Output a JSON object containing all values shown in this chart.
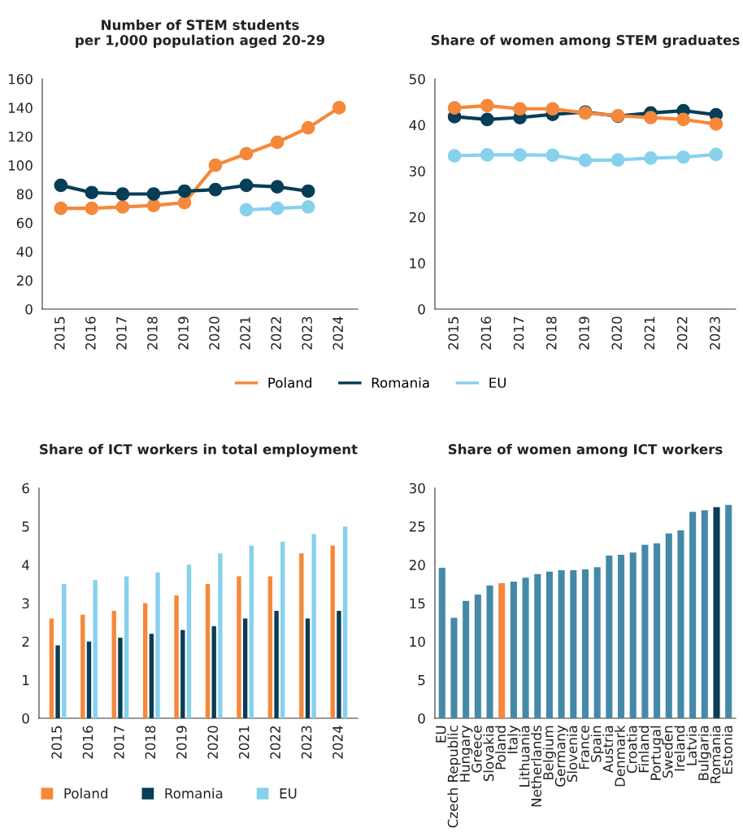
{
  "chart_data": [
    {
      "type": "line",
      "title": "Number of STEM students\nper 1,000 population aged 20-29",
      "categories": [
        "2015",
        "2016",
        "2017",
        "2018",
        "2019",
        "2020",
        "2021",
        "2022",
        "2023",
        "2024"
      ],
      "ylim": [
        0,
        160
      ],
      "yticks": [
        0,
        20,
        40,
        60,
        80,
        100,
        120,
        140,
        160
      ],
      "marker": "circle",
      "legend": "bottom",
      "grid": false,
      "series": [
        {
          "name": "Poland",
          "color": "#f5883a",
          "values": [
            70,
            70,
            71,
            72,
            74,
            100,
            108,
            116,
            126,
            140
          ]
        },
        {
          "name": "Romania",
          "color": "#063d57",
          "values": [
            86,
            81,
            80,
            80,
            82,
            83,
            86,
            85,
            82,
            null
          ]
        },
        {
          "name": "EU",
          "color": "#87d1ed",
          "values": [
            null,
            null,
            null,
            null,
            null,
            null,
            69,
            70,
            71,
            null
          ]
        }
      ]
    },
    {
      "type": "line",
      "title": "Share of women among STEM graduates",
      "categories": [
        "2015",
        "2016",
        "2017",
        "2018",
        "2019",
        "2020",
        "2021",
        "2022",
        "2023"
      ],
      "ylim": [
        0,
        50
      ],
      "yticks": [
        0,
        10,
        20,
        30,
        40,
        50
      ],
      "marker": "circle",
      "grid": false,
      "series": [
        {
          "color": "#063d57",
          "values": [
            41.8,
            41.2,
            41.6,
            42.3,
            42.8,
            41.9,
            42.6,
            43.1,
            42.2
          ]
        },
        {
          "color": "#87d1ed",
          "values": [
            33.3,
            33.5,
            33.5,
            33.4,
            32.3,
            32.4,
            32.8,
            33.0,
            33.6
          ]
        },
        {
          "color": "#f5883a",
          "values": [
            43.7,
            44.2,
            43.5,
            43.5,
            42.6,
            42.0,
            41.6,
            41.2,
            40.2
          ]
        }
      ]
    },
    {
      "type": "bar",
      "title": "Share of ICT workers in total employment",
      "categories": [
        "2015",
        "2016",
        "2017",
        "2018",
        "2019",
        "2020",
        "2021",
        "2022",
        "2023",
        "2024"
      ],
      "ylim": [
        0,
        6
      ],
      "yticks": [
        0,
        1,
        2,
        3,
        4,
        5,
        6
      ],
      "legend": "bottom",
      "grid": false,
      "series": [
        {
          "name": "Poland",
          "color": "#f5883a",
          "values": [
            2.6,
            2.7,
            2.8,
            3.0,
            3.2,
            3.5,
            3.7,
            3.7,
            4.3,
            4.5
          ]
        },
        {
          "name": "Romania",
          "color": "#0a3d56",
          "values": [
            1.9,
            2.0,
            2.1,
            2.2,
            2.3,
            2.4,
            2.6,
            2.8,
            2.6,
            2.8
          ]
        },
        {
          "name": "EU",
          "color": "#87d1ed",
          "values": [
            3.5,
            3.6,
            3.7,
            3.8,
            4.0,
            4.3,
            4.5,
            4.6,
            4.8,
            5.0
          ]
        }
      ]
    },
    {
      "type": "bar",
      "title": "Share of women among ICT workers",
      "categories": [
        "EU",
        "Czech Republic",
        "Hungary",
        "Greece",
        "Slovakia",
        "Poland",
        "Italy",
        "Lithuania",
        "Netherlands",
        "Belgium",
        "Germany",
        "Slovenia",
        "France",
        "Spain",
        "Austria",
        "Denmark",
        "Croatia",
        "Finland",
        "Portugal",
        "Sweden",
        "Ireland",
        "Latvia",
        "Bulgaria",
        "Romania",
        "Estonia"
      ],
      "ylim": [
        0,
        30
      ],
      "yticks": [
        0,
        5,
        10,
        15,
        20,
        25,
        30
      ],
      "grid": false,
      "values": [
        19.6,
        13.1,
        15.3,
        16.1,
        17.3,
        17.6,
        17.8,
        18.3,
        18.8,
        19.1,
        19.3,
        19.3,
        19.4,
        19.7,
        21.2,
        21.3,
        21.6,
        22.6,
        22.8,
        24.1,
        24.5,
        26.9,
        27.1,
        27.5,
        27.8
      ],
      "colors": [
        "#4589a8",
        "#4589a8",
        "#4589a8",
        "#4589a8",
        "#4589a8",
        "#f5883a",
        "#4589a8",
        "#4589a8",
        "#4589a8",
        "#4589a8",
        "#4589a8",
        "#4589a8",
        "#4589a8",
        "#4589a8",
        "#4589a8",
        "#4589a8",
        "#4589a8",
        "#4589a8",
        "#4589a8",
        "#4589a8",
        "#4589a8",
        "#4589a8",
        "#4589a8",
        "#0a3d56",
        "#4589a8"
      ]
    }
  ]
}
